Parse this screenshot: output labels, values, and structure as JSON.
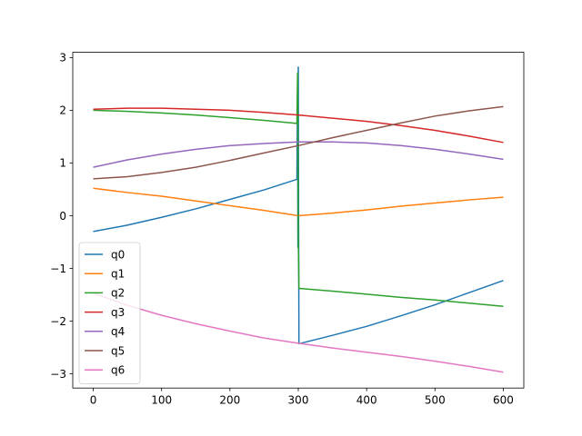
{
  "chart_data": {
    "type": "line",
    "title": "",
    "xlabel": "",
    "ylabel": "",
    "xlim": [
      -30,
      630
    ],
    "ylim": [
      -3.27,
      3.1
    ],
    "xticks": [
      0,
      100,
      200,
      300,
      400,
      500,
      600
    ],
    "yticks": [
      -3,
      -2,
      -1,
      0,
      1,
      2,
      3
    ],
    "xtick_labels": [
      "0",
      "100",
      "200",
      "300",
      "400",
      "500",
      "600"
    ],
    "ytick_labels": [
      "−3",
      "−2",
      "−1",
      "0",
      "1",
      "2",
      "3"
    ],
    "grid": false,
    "legend_position": "lower-left",
    "series": [
      {
        "name": "q0",
        "color": "#1f77b4",
        "points": [
          [
            0,
            -0.3
          ],
          [
            50,
            -0.18
          ],
          [
            100,
            -0.03
          ],
          [
            150,
            0.13
          ],
          [
            200,
            0.31
          ],
          [
            250,
            0.49
          ],
          [
            298,
            0.69
          ],
          [
            299,
            2.45
          ],
          [
            299.5,
            -0.6
          ],
          [
            300,
            2.82
          ],
          [
            300.5,
            -0.2
          ],
          [
            301,
            -2.43
          ],
          [
            350,
            -2.27
          ],
          [
            400,
            -2.1
          ],
          [
            450,
            -1.9
          ],
          [
            500,
            -1.69
          ],
          [
            550,
            -1.46
          ],
          [
            600,
            -1.23
          ]
        ]
      },
      {
        "name": "q1",
        "color": "#ff7f0e",
        "points": [
          [
            0,
            0.52
          ],
          [
            50,
            0.44
          ],
          [
            100,
            0.37
          ],
          [
            150,
            0.28
          ],
          [
            200,
            0.19
          ],
          [
            250,
            0.1
          ],
          [
            300,
            0.0
          ],
          [
            350,
            0.05
          ],
          [
            400,
            0.11
          ],
          [
            450,
            0.18
          ],
          [
            500,
            0.24
          ],
          [
            550,
            0.3
          ],
          [
            600,
            0.35
          ]
        ]
      },
      {
        "name": "q2",
        "color": "#2ca02c",
        "points": [
          [
            0,
            2.0
          ],
          [
            50,
            1.98
          ],
          [
            100,
            1.95
          ],
          [
            150,
            1.91
          ],
          [
            200,
            1.86
          ],
          [
            250,
            1.81
          ],
          [
            298,
            1.75
          ],
          [
            299,
            2.7
          ],
          [
            300,
            -0.4
          ],
          [
            301,
            -1.38
          ],
          [
            350,
            -1.43
          ],
          [
            400,
            -1.49
          ],
          [
            450,
            -1.55
          ],
          [
            500,
            -1.6
          ],
          [
            550,
            -1.66
          ],
          [
            600,
            -1.72
          ]
        ]
      },
      {
        "name": "q3",
        "color": "#d62728",
        "points": [
          [
            0,
            2.02
          ],
          [
            50,
            2.04
          ],
          [
            100,
            2.04
          ],
          [
            150,
            2.02
          ],
          [
            200,
            2.0
          ],
          [
            250,
            1.96
          ],
          [
            300,
            1.91
          ],
          [
            350,
            1.85
          ],
          [
            400,
            1.79
          ],
          [
            450,
            1.71
          ],
          [
            500,
            1.62
          ],
          [
            550,
            1.51
          ],
          [
            600,
            1.39
          ]
        ]
      },
      {
        "name": "q4",
        "color": "#9467bd",
        "points": [
          [
            0,
            0.92
          ],
          [
            50,
            1.06
          ],
          [
            100,
            1.17
          ],
          [
            150,
            1.26
          ],
          [
            200,
            1.33
          ],
          [
            250,
            1.37
          ],
          [
            300,
            1.4
          ],
          [
            350,
            1.4
          ],
          [
            400,
            1.38
          ],
          [
            450,
            1.33
          ],
          [
            500,
            1.26
          ],
          [
            550,
            1.17
          ],
          [
            600,
            1.07
          ]
        ]
      },
      {
        "name": "q5",
        "color": "#8c564b",
        "points": [
          [
            0,
            0.7
          ],
          [
            50,
            0.74
          ],
          [
            100,
            0.82
          ],
          [
            150,
            0.92
          ],
          [
            200,
            1.05
          ],
          [
            250,
            1.19
          ],
          [
            300,
            1.33
          ],
          [
            350,
            1.48
          ],
          [
            400,
            1.62
          ],
          [
            450,
            1.76
          ],
          [
            500,
            1.89
          ],
          [
            550,
            1.99
          ],
          [
            600,
            2.07
          ]
        ]
      },
      {
        "name": "q6",
        "color": "#e377c2",
        "points": [
          [
            0,
            -1.47
          ],
          [
            50,
            -1.7
          ],
          [
            100,
            -1.89
          ],
          [
            150,
            -2.05
          ],
          [
            200,
            -2.19
          ],
          [
            250,
            -2.32
          ],
          [
            300,
            -2.42
          ],
          [
            350,
            -2.51
          ],
          [
            400,
            -2.59
          ],
          [
            450,
            -2.67
          ],
          [
            500,
            -2.76
          ],
          [
            550,
            -2.86
          ],
          [
            600,
            -2.97
          ]
        ]
      }
    ]
  }
}
